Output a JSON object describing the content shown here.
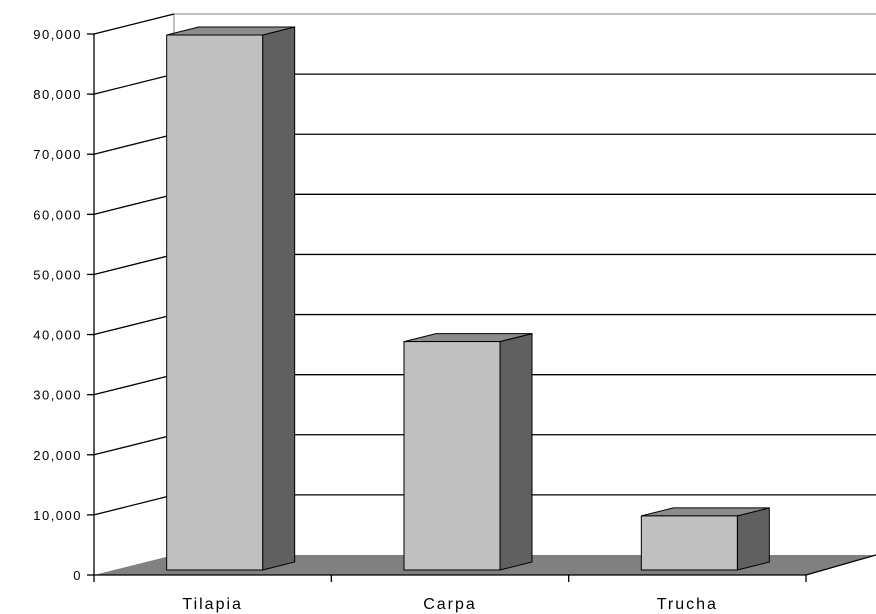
{
  "chart_data": {
    "type": "bar",
    "categories": [
      "Tilapia",
      "Carpa",
      "Trucha"
    ],
    "values": [
      89000,
      38000,
      9000
    ],
    "ylim": [
      0,
      90000
    ],
    "yticks": [
      "0",
      "10,000",
      "20,000",
      "30,000",
      "40,000",
      "50,000",
      "60,000",
      "70,000",
      "80,000",
      "90,000"
    ],
    "grid": true,
    "style": "3d",
    "colors": {
      "bar_front": "#c0c0c0",
      "bar_side": "#606060",
      "bar_top": "#8c8c8c",
      "floor": "#808080",
      "gridline": "#000000",
      "wall_edge": "#808080"
    }
  }
}
